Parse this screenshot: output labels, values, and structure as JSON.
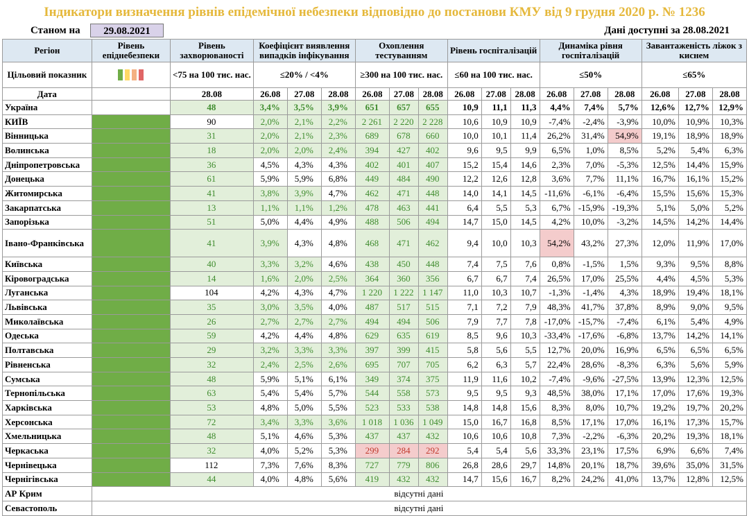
{
  "title": "Індикатори визначення рівнів епідемічної небезпеки відповідно до постанови КМУ від 9 грудня 2020 р. № 1236",
  "as_of_label": "Станом на",
  "as_of_date": "29.08.2021",
  "data_available_label": "Дані доступні за",
  "data_available_date": "28.08.2021",
  "headers": {
    "region": "Регіон",
    "level": "Рівень епіднебезпеки",
    "incidence": "Рівень захворюваності",
    "detection": "Коефіцієнт виявлення випадків інфікування",
    "testing": "Охоплення тестуванням",
    "hosp": "Рівень госпіталізацій",
    "hosp_dyn": "Динаміка рівня госпіталізацій",
    "oxygen": "Завантаженість ліжок з киснем"
  },
  "targets": {
    "label": "Цільовий показник",
    "incidence": "<75 на 100 тис. нас.",
    "detection": "≤20% / <4%",
    "testing": "≥300 на 100 тис. нас.",
    "hosp": "≤60 на 100 тис. нас.",
    "hosp_dyn": "≤50%",
    "oxygen": "≤65%"
  },
  "level_colors": [
    "#70ad47",
    "#ffd966",
    "#f4b183",
    "#e06666"
  ],
  "date_row": {
    "label": "Дата",
    "incidence": [
      "28.08"
    ],
    "detection": [
      "26.08",
      "27.08",
      "28.08"
    ],
    "testing": [
      "26.08",
      "27.08",
      "28.08"
    ],
    "hosp": [
      "26.08",
      "27.08",
      "28.08"
    ],
    "hosp_dyn": [
      "26.08",
      "27.08",
      "28.08"
    ],
    "oxygen": [
      "26.08",
      "27.08",
      "28.08"
    ]
  },
  "rows": [
    {
      "region": "Україна",
      "incidence": "48",
      "detection": [
        "3,4%",
        "3,5%",
        "3,9%"
      ],
      "testing": [
        "651",
        "657",
        "655"
      ],
      "hosp": [
        "10,9",
        "11,1",
        "11,3"
      ],
      "hosp_dyn": [
        "4,4%",
        "7,4%",
        "5,7%"
      ],
      "oxygen": [
        "12,6%",
        "12,7%",
        "12,9%"
      ]
    },
    {
      "region": "КИЇВ",
      "incidence": "90",
      "detection": [
        "2,0%",
        "2,1%",
        "2,2%"
      ],
      "testing": [
        "2 261",
        "2 220",
        "2 228"
      ],
      "hosp": [
        "10,6",
        "10,9",
        "10,9"
      ],
      "hosp_dyn": [
        "-7,4%",
        "-2,4%",
        "-3,9%"
      ],
      "oxygen": [
        "10,0%",
        "10,9%",
        "10,3%"
      ]
    },
    {
      "region": "Вінницька",
      "incidence": "31",
      "detection": [
        "2,0%",
        "2,1%",
        "2,3%"
      ],
      "testing": [
        "689",
        "678",
        "660"
      ],
      "hosp": [
        "10,0",
        "10,1",
        "11,4"
      ],
      "hosp_dyn": [
        "26,2%",
        "31,4%",
        "54,9%"
      ],
      "oxygen": [
        "19,1%",
        "18,9%",
        "18,9%"
      ]
    },
    {
      "region": "Волинська",
      "incidence": "18",
      "detection": [
        "2,0%",
        "2,0%",
        "2,4%"
      ],
      "testing": [
        "394",
        "427",
        "402"
      ],
      "hosp": [
        "9,6",
        "9,5",
        "9,9"
      ],
      "hosp_dyn": [
        "6,5%",
        "1,0%",
        "8,5%"
      ],
      "oxygen": [
        "5,2%",
        "5,4%",
        "6,3%"
      ]
    },
    {
      "region": "Дніпропетровська",
      "incidence": "36",
      "detection": [
        "4,5%",
        "4,3%",
        "4,3%"
      ],
      "testing": [
        "402",
        "401",
        "407"
      ],
      "hosp": [
        "15,2",
        "15,4",
        "14,6"
      ],
      "hosp_dyn": [
        "2,3%",
        "7,0%",
        "-5,3%"
      ],
      "oxygen": [
        "12,5%",
        "14,4%",
        "15,9%"
      ]
    },
    {
      "region": "Донецька",
      "incidence": "61",
      "detection": [
        "5,9%",
        "5,9%",
        "6,8%"
      ],
      "testing": [
        "449",
        "484",
        "490"
      ],
      "hosp": [
        "12,2",
        "12,6",
        "12,8"
      ],
      "hosp_dyn": [
        "3,6%",
        "7,7%",
        "11,1%"
      ],
      "oxygen": [
        "16,7%",
        "16,1%",
        "15,2%"
      ]
    },
    {
      "region": "Житомирська",
      "incidence": "41",
      "detection": [
        "3,8%",
        "3,9%",
        "4,7%"
      ],
      "testing": [
        "462",
        "471",
        "448"
      ],
      "hosp": [
        "14,0",
        "14,1",
        "14,5"
      ],
      "hosp_dyn": [
        "-11,6%",
        "-6,1%",
        "-6,4%"
      ],
      "oxygen": [
        "15,5%",
        "15,6%",
        "15,3%"
      ]
    },
    {
      "region": "Закарпатська",
      "incidence": "13",
      "detection": [
        "1,1%",
        "1,1%",
        "1,2%"
      ],
      "testing": [
        "478",
        "463",
        "441"
      ],
      "hosp": [
        "6,4",
        "5,5",
        "5,3"
      ],
      "hosp_dyn": [
        "6,7%",
        "-15,9%",
        "-19,3%"
      ],
      "oxygen": [
        "5,1%",
        "5,0%",
        "5,2%"
      ]
    },
    {
      "region": "Запорізька",
      "incidence": "51",
      "detection": [
        "5,0%",
        "4,4%",
        "4,9%"
      ],
      "testing": [
        "488",
        "506",
        "494"
      ],
      "hosp": [
        "14,7",
        "15,0",
        "14,5"
      ],
      "hosp_dyn": [
        "4,2%",
        "10,0%",
        "-3,2%"
      ],
      "oxygen": [
        "14,5%",
        "14,2%",
        "14,4%"
      ]
    },
    {
      "region": "Івано-Франківська",
      "incidence": "41",
      "detection": [
        "3,9%",
        "4,3%",
        "4,8%"
      ],
      "testing": [
        "468",
        "471",
        "462"
      ],
      "hosp": [
        "9,4",
        "10,0",
        "10,3"
      ],
      "hosp_dyn": [
        "54,2%",
        "43,2%",
        "27,3%"
      ],
      "oxygen": [
        "12,0%",
        "11,9%",
        "17,0%"
      ]
    },
    {
      "region": "Київська",
      "incidence": "40",
      "detection": [
        "3,3%",
        "3,2%",
        "4,6%"
      ],
      "testing": [
        "438",
        "450",
        "448"
      ],
      "hosp": [
        "7,4",
        "7,5",
        "7,6"
      ],
      "hosp_dyn": [
        "0,8%",
        "-1,5%",
        "1,5%"
      ],
      "oxygen": [
        "9,3%",
        "9,5%",
        "8,8%"
      ]
    },
    {
      "region": "Кіровоградська",
      "incidence": "14",
      "detection": [
        "1,6%",
        "2,0%",
        "2,5%"
      ],
      "testing": [
        "364",
        "360",
        "356"
      ],
      "hosp": [
        "6,7",
        "6,7",
        "7,4"
      ],
      "hosp_dyn": [
        "26,5%",
        "17,0%",
        "25,5%"
      ],
      "oxygen": [
        "4,4%",
        "4,5%",
        "5,3%"
      ]
    },
    {
      "region": "Луганська",
      "incidence": "104",
      "detection": [
        "4,2%",
        "4,3%",
        "4,7%"
      ],
      "testing": [
        "1 220",
        "1 222",
        "1 147"
      ],
      "hosp": [
        "11,0",
        "10,3",
        "10,7"
      ],
      "hosp_dyn": [
        "-1,3%",
        "-1,4%",
        "4,3%"
      ],
      "oxygen": [
        "18,9%",
        "19,4%",
        "18,1%"
      ]
    },
    {
      "region": "Львівська",
      "incidence": "35",
      "detection": [
        "3,0%",
        "3,5%",
        "4,0%"
      ],
      "testing": [
        "487",
        "517",
        "515"
      ],
      "hosp": [
        "7,1",
        "7,2",
        "7,9"
      ],
      "hosp_dyn": [
        "48,3%",
        "41,7%",
        "37,8%"
      ],
      "oxygen": [
        "8,9%",
        "9,0%",
        "9,5%"
      ]
    },
    {
      "region": "Миколаївська",
      "incidence": "26",
      "detection": [
        "2,7%",
        "2,7%",
        "2,7%"
      ],
      "testing": [
        "494",
        "494",
        "506"
      ],
      "hosp": [
        "7,9",
        "7,7",
        "7,8"
      ],
      "hosp_dyn": [
        "-17,0%",
        "-15,7%",
        "-7,4%"
      ],
      "oxygen": [
        "6,1%",
        "5,4%",
        "4,9%"
      ]
    },
    {
      "region": "Одеська",
      "incidence": "59",
      "detection": [
        "4,2%",
        "4,4%",
        "4,8%"
      ],
      "testing": [
        "629",
        "635",
        "619"
      ],
      "hosp": [
        "8,5",
        "9,6",
        "10,3"
      ],
      "hosp_dyn": [
        "-33,4%",
        "-17,6%",
        "-6,8%"
      ],
      "oxygen": [
        "13,7%",
        "14,2%",
        "14,1%"
      ]
    },
    {
      "region": "Полтавська",
      "incidence": "29",
      "detection": [
        "3,2%",
        "3,3%",
        "3,3%"
      ],
      "testing": [
        "397",
        "399",
        "415"
      ],
      "hosp": [
        "5,8",
        "5,6",
        "5,5"
      ],
      "hosp_dyn": [
        "12,7%",
        "20,0%",
        "16,9%"
      ],
      "oxygen": [
        "6,5%",
        "6,5%",
        "6,5%"
      ]
    },
    {
      "region": "Рівненська",
      "incidence": "32",
      "detection": [
        "2,4%",
        "2,5%",
        "2,6%"
      ],
      "testing": [
        "695",
        "707",
        "705"
      ],
      "hosp": [
        "6,2",
        "6,3",
        "5,7"
      ],
      "hosp_dyn": [
        "22,4%",
        "28,6%",
        "-8,3%"
      ],
      "oxygen": [
        "6,3%",
        "5,6%",
        "5,9%"
      ]
    },
    {
      "region": "Сумська",
      "incidence": "48",
      "detection": [
        "5,9%",
        "5,1%",
        "6,1%"
      ],
      "testing": [
        "349",
        "374",
        "375"
      ],
      "hosp": [
        "11,9",
        "11,6",
        "10,2"
      ],
      "hosp_dyn": [
        "-7,4%",
        "-9,6%",
        "-27,5%"
      ],
      "oxygen": [
        "13,9%",
        "12,3%",
        "12,5%"
      ]
    },
    {
      "region": "Тернопільська",
      "incidence": "63",
      "detection": [
        "5,4%",
        "5,4%",
        "5,7%"
      ],
      "testing": [
        "544",
        "558",
        "573"
      ],
      "hosp": [
        "9,5",
        "9,5",
        "9,3"
      ],
      "hosp_dyn": [
        "48,5%",
        "38,0%",
        "17,1%"
      ],
      "oxygen": [
        "17,0%",
        "17,6%",
        "19,3%"
      ]
    },
    {
      "region": "Харківська",
      "incidence": "53",
      "detection": [
        "4,8%",
        "5,0%",
        "5,5%"
      ],
      "testing": [
        "523",
        "533",
        "538"
      ],
      "hosp": [
        "14,8",
        "14,8",
        "15,6"
      ],
      "hosp_dyn": [
        "8,3%",
        "8,0%",
        "10,7%"
      ],
      "oxygen": [
        "19,2%",
        "19,7%",
        "20,2%"
      ]
    },
    {
      "region": "Херсонська",
      "incidence": "72",
      "detection": [
        "3,4%",
        "3,3%",
        "3,6%"
      ],
      "testing": [
        "1 018",
        "1 036",
        "1 049"
      ],
      "hosp": [
        "15,0",
        "16,7",
        "16,8"
      ],
      "hosp_dyn": [
        "8,5%",
        "17,1%",
        "17,0%"
      ],
      "oxygen": [
        "16,1%",
        "17,3%",
        "15,7%"
      ]
    },
    {
      "region": "Хмельницька",
      "incidence": "48",
      "detection": [
        "5,1%",
        "4,6%",
        "5,3%"
      ],
      "testing": [
        "437",
        "437",
        "432"
      ],
      "hosp": [
        "10,6",
        "10,6",
        "10,8"
      ],
      "hosp_dyn": [
        "7,3%",
        "-2,2%",
        "-6,3%"
      ],
      "oxygen": [
        "20,2%",
        "19,3%",
        "18,1%"
      ]
    },
    {
      "region": "Черкаська",
      "incidence": "32",
      "detection": [
        "4,0%",
        "5,2%",
        "5,3%"
      ],
      "testing": [
        "299",
        "284",
        "292"
      ],
      "hosp": [
        "5,4",
        "5,4",
        "5,6"
      ],
      "hosp_dyn": [
        "33,3%",
        "23,1%",
        "17,5%"
      ],
      "oxygen": [
        "6,9%",
        "6,6%",
        "7,4%"
      ]
    },
    {
      "region": "Чернівецька",
      "incidence": "112",
      "detection": [
        "7,3%",
        "7,6%",
        "8,3%"
      ],
      "testing": [
        "727",
        "779",
        "806"
      ],
      "hosp": [
        "26,8",
        "28,6",
        "29,7"
      ],
      "hosp_dyn": [
        "14,8%",
        "20,1%",
        "18,7%"
      ],
      "oxygen": [
        "39,6%",
        "35,0%",
        "31,5%"
      ]
    },
    {
      "region": "Чернігівська",
      "incidence": "44",
      "detection": [
        "4,0%",
        "4,8%",
        "5,6%"
      ],
      "testing": [
        "419",
        "432",
        "432"
      ],
      "hosp": [
        "14,7",
        "15,6",
        "16,7"
      ],
      "hosp_dyn": [
        "8,2%",
        "24,2%",
        "41,0%"
      ],
      "oxygen": [
        "13,7%",
        "12,8%",
        "12,5%"
      ]
    }
  ],
  "missing_rows": [
    {
      "region": "АР Крим",
      "note": "відсутні дані"
    },
    {
      "region": "Севастополь",
      "note": "відсутні дані"
    }
  ]
}
